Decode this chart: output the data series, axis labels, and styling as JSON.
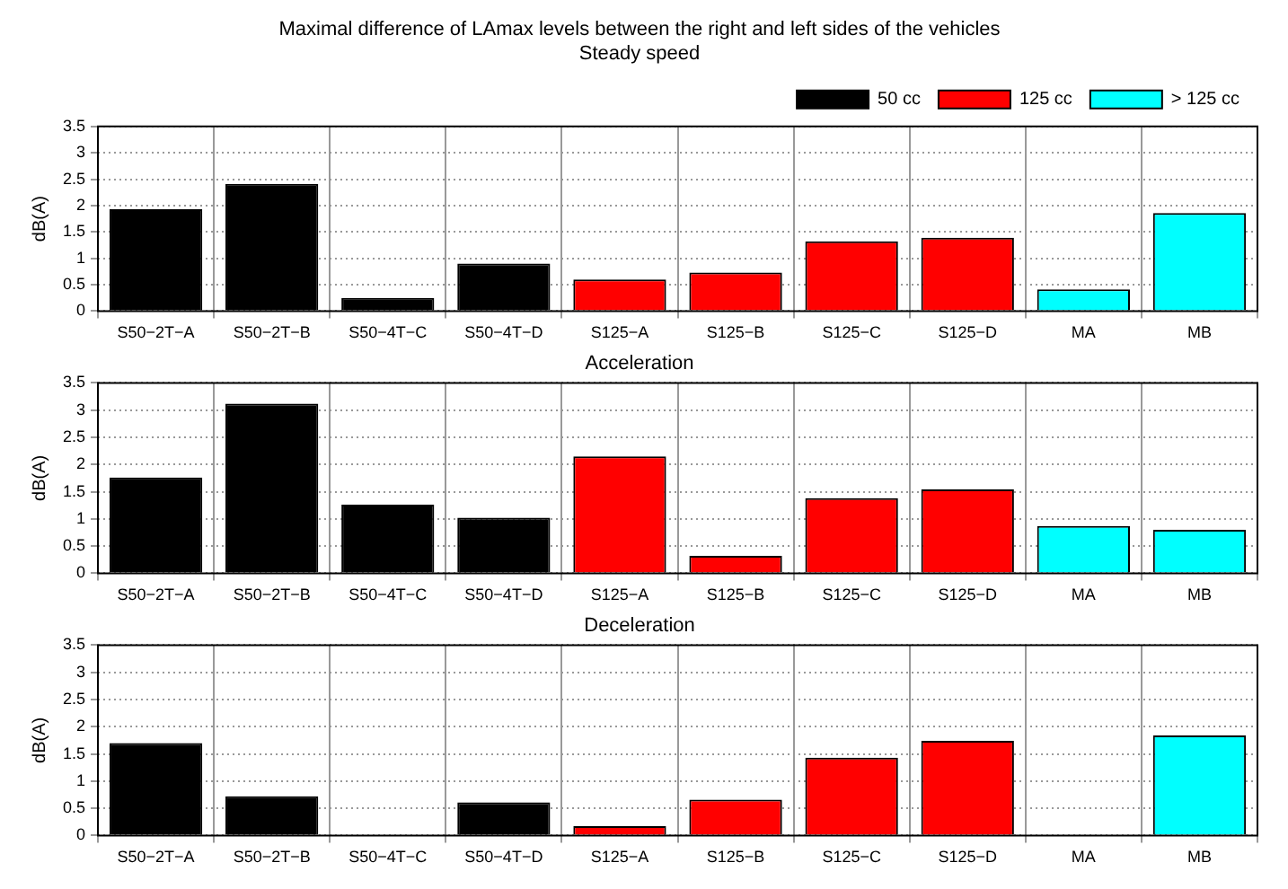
{
  "chart_data": [
    {
      "type": "bar",
      "title": "Maximal difference of LAmax levels between the right and left sides of the vehicles",
      "subtitle": "Steady speed",
      "ylabel": "dB(A)",
      "categories": [
        "S50−2T−A",
        "S50−2T−B",
        "S50−4T−C",
        "S50−4T−D",
        "S125−A",
        "S125−B",
        "S125−C",
        "S125−D",
        "MA",
        "MB"
      ],
      "series": [
        {
          "name": "50 cc",
          "color": "#000000",
          "values": [
            1.93,
            2.41,
            0.25,
            0.9,
            null,
            null,
            null,
            null,
            null,
            null
          ]
        },
        {
          "name": "125 cc",
          "color": "#ff0000",
          "values": [
            null,
            null,
            null,
            null,
            0.6,
            0.73,
            1.32,
            1.39,
            null,
            null
          ]
        },
        {
          "name": "> 125 cc",
          "color": "#00ffff",
          "values": [
            null,
            null,
            null,
            null,
            null,
            null,
            null,
            null,
            0.41,
            1.86
          ]
        }
      ],
      "ylim": [
        0,
        3.5
      ],
      "yticks": [
        0,
        0.5,
        1,
        1.5,
        2,
        2.5,
        3,
        3.5
      ],
      "grid": true,
      "legend": "top right"
    },
    {
      "type": "bar",
      "title": "Acceleration",
      "ylabel": "dB(A)",
      "categories": [
        "S50−2T−A",
        "S50−2T−B",
        "S50−4T−C",
        "S50−4T−D",
        "S125−A",
        "S125−B",
        "S125−C",
        "S125−D",
        "MA",
        "MB"
      ],
      "series": [
        {
          "color": "#000000",
          "values": [
            1.76,
            3.12,
            1.26,
            1.02,
            null,
            null,
            null,
            null,
            null,
            null
          ]
        },
        {
          "color": "#ff0000",
          "values": [
            null,
            null,
            null,
            null,
            2.15,
            0.32,
            1.38,
            1.54,
            null,
            null
          ]
        },
        {
          "color": "#00ffff",
          "values": [
            null,
            null,
            null,
            null,
            null,
            null,
            null,
            null,
            0.87,
            0.8
          ]
        }
      ],
      "ylim": [
        0,
        3.5
      ],
      "yticks": [
        0,
        0.5,
        1,
        1.5,
        2,
        2.5,
        3,
        3.5
      ],
      "grid": true
    },
    {
      "type": "bar",
      "title": "Deceleration",
      "ylabel": "dB(A)",
      "categories": [
        "S50−2T−A",
        "S50−2T−B",
        "S50−4T−C",
        "S50−4T−D",
        "S125−A",
        "S125−B",
        "S125−C",
        "S125−D",
        "MA",
        "MB"
      ],
      "series": [
        {
          "color": "#000000",
          "values": [
            1.7,
            0.72,
            0,
            0.61,
            null,
            null,
            null,
            null,
            null,
            null
          ]
        },
        {
          "color": "#ff0000",
          "values": [
            null,
            null,
            null,
            null,
            0.17,
            0.66,
            1.43,
            1.74,
            null,
            null
          ]
        },
        {
          "color": "#00ffff",
          "values": [
            null,
            null,
            null,
            null,
            null,
            null,
            null,
            null,
            0,
            1.84
          ]
        }
      ],
      "ylim": [
        0,
        3.5
      ],
      "yticks": [
        0,
        0.5,
        1,
        1.5,
        2,
        2.5,
        3,
        3.5
      ],
      "grid": true
    }
  ]
}
